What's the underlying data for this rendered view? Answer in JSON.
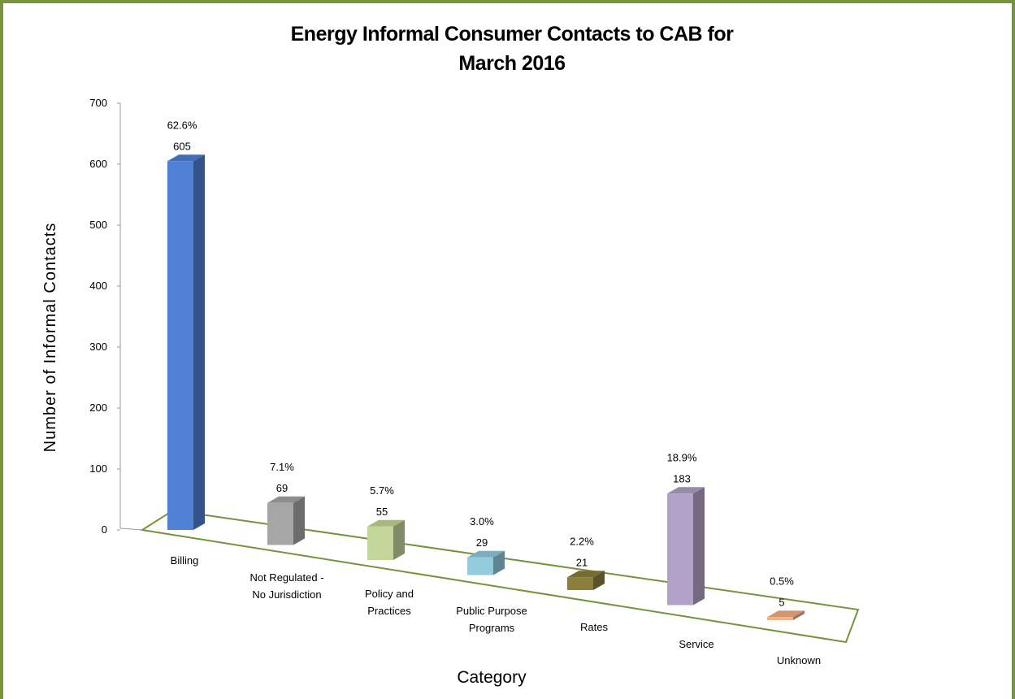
{
  "chart_data": {
    "type": "bar3d",
    "title": "Energy Informal Consumer Contacts to CAB for March 2016",
    "x_label": "Category",
    "y_label": "Number of Informal Contacts",
    "categories": [
      "Billing",
      "Not Regulated - No Jurisdiction",
      "Policy and Practices",
      "Public Purpose Programs",
      "Rates",
      "Service",
      "Unknown"
    ],
    "values": [
      605,
      69,
      55,
      29,
      21,
      183,
      5
    ],
    "percent_labels": [
      "62.6%",
      "7.1%",
      "5.7%",
      "3.0%",
      "2.2%",
      "18.9%",
      "0.5%"
    ],
    "colors": [
      "#4f81d6",
      "#a6a6a6",
      "#c4d79b",
      "#93cddd",
      "#8c7e3c",
      "#b3a2c7",
      "#f5b184"
    ],
    "ylim": [
      0,
      700
    ],
    "yticks": [
      0,
      100,
      200,
      300,
      400,
      500,
      600,
      700
    ]
  }
}
